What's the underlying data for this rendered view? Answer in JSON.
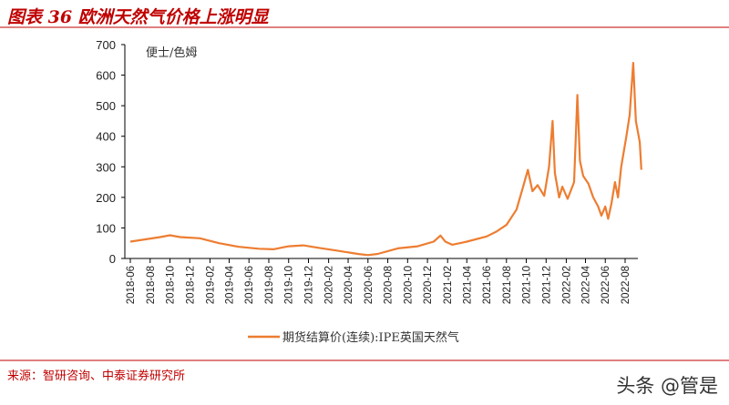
{
  "header": {
    "title": "图表 36 欧洲天然气价格上涨明显"
  },
  "footer": {
    "source": "来源：智研咨询、中泰证券研究所",
    "watermark": "头条 @管是"
  },
  "chart_data": {
    "type": "line",
    "title": "",
    "ylabel": "便士/色姆",
    "ylim": [
      0,
      700
    ],
    "yticks": [
      0,
      100,
      200,
      300,
      400,
      500,
      600,
      700
    ],
    "xticks": [
      "2018-06",
      "2018-08",
      "2018-10",
      "2018-12",
      "2019-02",
      "2019-04",
      "2019-06",
      "2019-08",
      "2019-10",
      "2019-12",
      "2020-02",
      "2020-04",
      "2020-06",
      "2020-08",
      "2020-10",
      "2020-12",
      "2021-02",
      "2021-04",
      "2021-06",
      "2021-08",
      "2021-10",
      "2021-12",
      "2022-02",
      "2022-04",
      "2022-06",
      "2022-08"
    ],
    "legend": "bottom",
    "color": "#ed7d31",
    "series": [
      {
        "name": "期货结算价(连续):IPE英国天然气",
        "points": [
          [
            "2018-06-01",
            55
          ],
          [
            "2018-07-01",
            60
          ],
          [
            "2018-09-01",
            70
          ],
          [
            "2018-10-01",
            76
          ],
          [
            "2018-11-01",
            70
          ],
          [
            "2019-01-01",
            66
          ],
          [
            "2019-03-01",
            50
          ],
          [
            "2019-05-01",
            38
          ],
          [
            "2019-07-01",
            32
          ],
          [
            "2019-08-15",
            30
          ],
          [
            "2019-10-01",
            40
          ],
          [
            "2019-11-15",
            43
          ],
          [
            "2020-01-01",
            35
          ],
          [
            "2020-03-01",
            25
          ],
          [
            "2020-05-01",
            15
          ],
          [
            "2020-06-01",
            11
          ],
          [
            "2020-07-01",
            15
          ],
          [
            "2020-09-01",
            33
          ],
          [
            "2020-11-01",
            40
          ],
          [
            "2020-12-20",
            55
          ],
          [
            "2021-01-10",
            75
          ],
          [
            "2021-01-25",
            55
          ],
          [
            "2021-02-15",
            45
          ],
          [
            "2021-04-01",
            55
          ],
          [
            "2021-06-01",
            72
          ],
          [
            "2021-07-01",
            88
          ],
          [
            "2021-08-01",
            110
          ],
          [
            "2021-09-01",
            160
          ],
          [
            "2021-09-20",
            230
          ],
          [
            "2021-10-06",
            290
          ],
          [
            "2021-10-20",
            220
          ],
          [
            "2021-11-05",
            240
          ],
          [
            "2021-11-25",
            205
          ],
          [
            "2021-12-10",
            300
          ],
          [
            "2021-12-21",
            450
          ],
          [
            "2021-12-28",
            280
          ],
          [
            "2022-01-10",
            200
          ],
          [
            "2022-01-20",
            235
          ],
          [
            "2022-02-05",
            195
          ],
          [
            "2022-02-25",
            250
          ],
          [
            "2022-03-07",
            535
          ],
          [
            "2022-03-15",
            320
          ],
          [
            "2022-03-25",
            270
          ],
          [
            "2022-04-10",
            245
          ],
          [
            "2022-04-25",
            200
          ],
          [
            "2022-05-10",
            170
          ],
          [
            "2022-05-20",
            140
          ],
          [
            "2022-06-01",
            170
          ],
          [
            "2022-06-10",
            130
          ],
          [
            "2022-06-20",
            180
          ],
          [
            "2022-07-01",
            250
          ],
          [
            "2022-07-10",
            200
          ],
          [
            "2022-07-20",
            300
          ],
          [
            "2022-08-05",
            400
          ],
          [
            "2022-08-15",
            470
          ],
          [
            "2022-08-26",
            640
          ],
          [
            "2022-09-03",
            450
          ],
          [
            "2022-09-10",
            410
          ],
          [
            "2022-09-15",
            380
          ],
          [
            "2022-09-20",
            290
          ]
        ]
      }
    ]
  }
}
